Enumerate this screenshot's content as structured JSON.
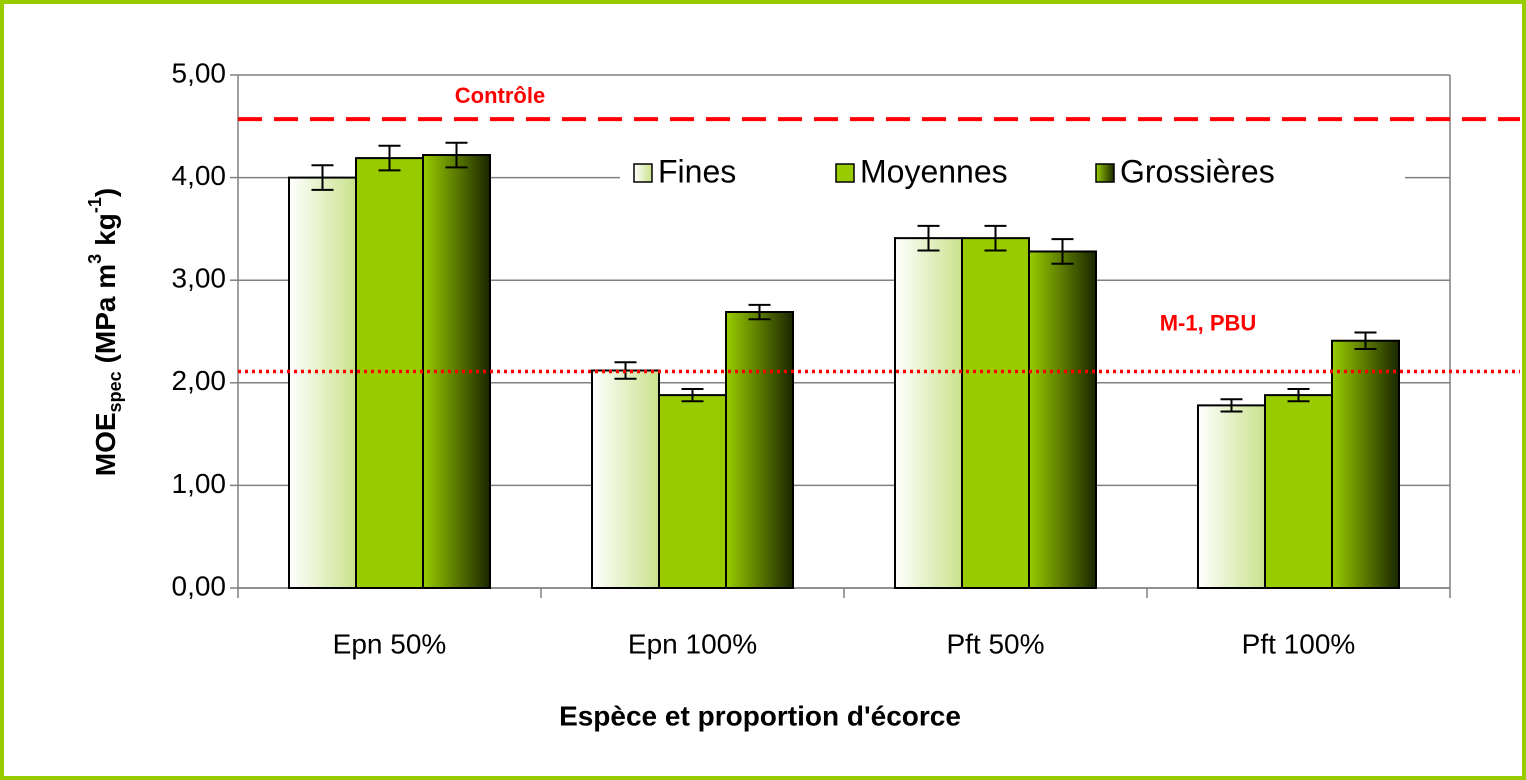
{
  "chart_data": {
    "type": "bar",
    "x_label": "Espèce et proportion d'écorce",
    "y_label": {
      "base": "MOE",
      "sub": "spec",
      "unit": "(MPa m",
      "sup1": "3",
      "mid": "kg",
      "sup2": "-1",
      "end": ")"
    },
    "categories": [
      "Epn 50%",
      "Epn 100%",
      "Pft 50%",
      "Pft 100%"
    ],
    "series": [
      {
        "name": "Fines",
        "color": "#d6eaa0",
        "gradient": [
          "#ffffff",
          "#c9e28c"
        ],
        "values": [
          4.0,
          2.12,
          3.41,
          1.78
        ],
        "errors": [
          0.12,
          0.08,
          0.12,
          0.06
        ]
      },
      {
        "name": "Moyennes",
        "color": "#99cc00",
        "gradient": [
          "#99cc00",
          "#99cc00"
        ],
        "values": [
          4.19,
          1.88,
          3.41,
          1.88
        ],
        "errors": [
          0.12,
          0.06,
          0.12,
          0.06
        ]
      },
      {
        "name": "Grossières",
        "color": "#4d6600",
        "gradient": [
          "#99cc00",
          "#1a2600"
        ],
        "values": [
          4.22,
          2.69,
          3.28,
          2.41
        ],
        "errors": [
          0.12,
          0.07,
          0.12,
          0.08
        ]
      }
    ],
    "reference_lines": [
      {
        "label": "Contrôle",
        "value": 4.57,
        "color": "#ff0000",
        "style": "dashed"
      },
      {
        "label": "M-1, PBU",
        "value": 2.11,
        "color": "#ff0000",
        "style": "dotted"
      }
    ],
    "ylim": [
      0,
      5
    ],
    "yticks": [
      {
        "value": 0,
        "label": "0,00"
      },
      {
        "value": 1,
        "label": "1,00"
      },
      {
        "value": 2,
        "label": "2,00"
      },
      {
        "value": 3,
        "label": "3,00"
      },
      {
        "value": 4,
        "label": "4,00"
      },
      {
        "value": 5,
        "label": "5,00"
      }
    ],
    "grid": true,
    "legend": "top"
  }
}
